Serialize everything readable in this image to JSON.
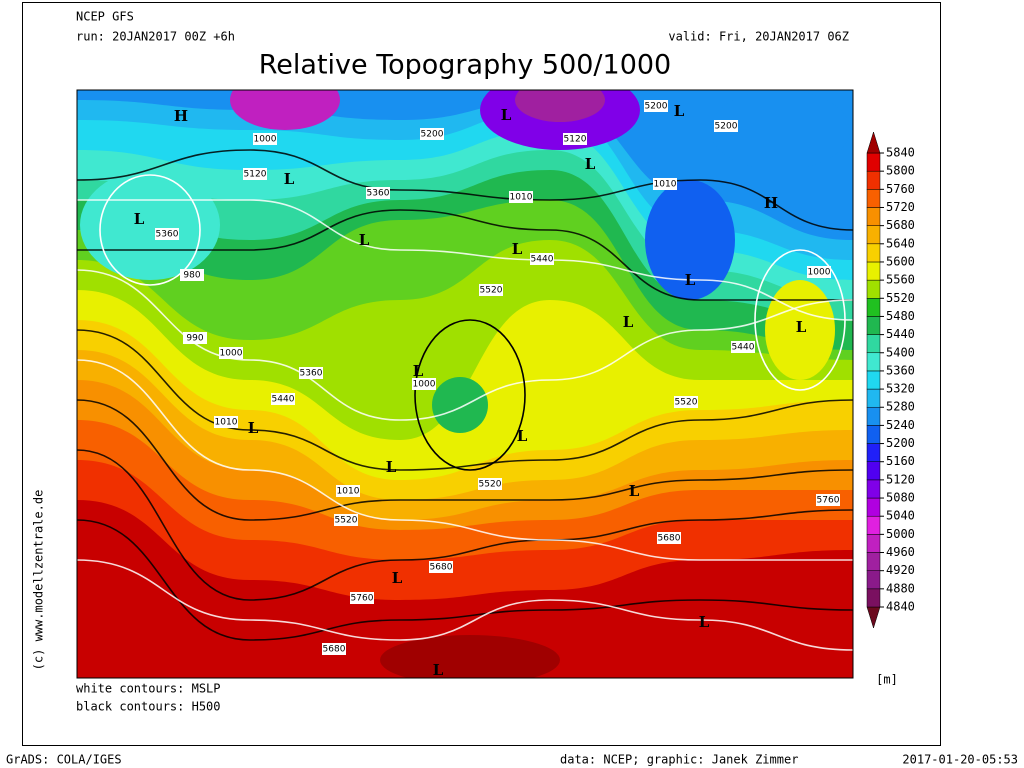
{
  "header": {
    "model": "NCEP GFS",
    "run": "run: 20JAN2017 00Z +6h",
    "valid": "valid: Fri, 20JAN2017 06Z",
    "title": "Relative Topography 500/1000"
  },
  "map": {
    "labels": [
      "H",
      "1000",
      "L",
      "5120",
      "L",
      "5360",
      "980",
      "990",
      "1000",
      "1010",
      "L",
      "5440",
      "5360",
      "L",
      "5360",
      "5200",
      "L",
      "5120",
      "L",
      "1010",
      "L",
      "5440",
      "5520",
      "L",
      "1000",
      "L",
      "L",
      "1010",
      "5520",
      "5520",
      "L",
      "L",
      "1010",
      "H",
      "1000",
      "L",
      "5440",
      "5200",
      "L",
      "5200",
      "5760",
      "L",
      "5680",
      "5680",
      "L",
      "5760",
      "5680",
      "L",
      "L",
      "5520"
    ]
  },
  "colorbar": {
    "levels": [
      4840,
      4880,
      4920,
      4960,
      5000,
      5040,
      5080,
      5120,
      5160,
      5200,
      5240,
      5280,
      5320,
      5360,
      5400,
      5440,
      5480,
      5520,
      5560,
      5600,
      5640,
      5680,
      5720,
      5760,
      5800,
      5840
    ],
    "colors": [
      "#6b0a1e",
      "#7a1060",
      "#8a1a8a",
      "#a020a0",
      "#c020c0",
      "#e020e0",
      "#b000e0",
      "#8000e8",
      "#5000f0",
      "#2020f8",
      "#1060f0",
      "#1890f0",
      "#20b8f0",
      "#20d8f0",
      "#40e8d0",
      "#30d8a0",
      "#20b850",
      "#20c020",
      "#a0e000",
      "#e8f000",
      "#f8d000",
      "#f8b000",
      "#f89000",
      "#f86000",
      "#f03000",
      "#e00000",
      "#a00000"
    ],
    "unit": "[m]"
  },
  "legend": {
    "white": "white contours: MSLP",
    "black": "black contours: H500"
  },
  "footer": {
    "left": "GrADS: COLA/IGES",
    "credit": "data: NCEP; graphic: Janek Zimmer",
    "timestamp": "2017-01-20-05:53",
    "site": "(c) www.modellzentrale.de"
  }
}
